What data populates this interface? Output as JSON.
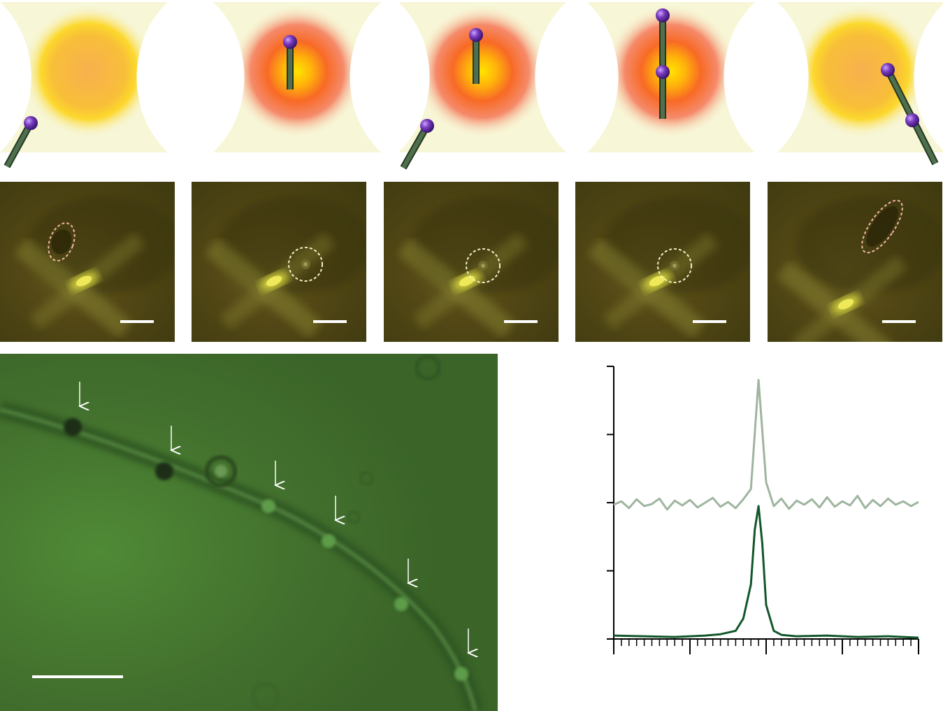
{
  "schematic_panels": [
    {
      "id": "s1",
      "trap_color": "yellow",
      "rods": [
        {
          "state": "outside-left-bottom"
        }
      ]
    },
    {
      "id": "s2",
      "trap_color": "red",
      "rods": [
        {
          "state": "trapped-vertical"
        }
      ]
    },
    {
      "id": "s3",
      "trap_color": "red",
      "rods": [
        {
          "state": "trapped-vertical"
        },
        {
          "state": "outside-left-bottom"
        }
      ]
    },
    {
      "id": "s4",
      "trap_color": "red",
      "rods": [
        {
          "state": "two-trapped-stacked"
        }
      ]
    },
    {
      "id": "s5",
      "trap_color": "yellow",
      "rods": [
        {
          "state": "escaping-right-two"
        }
      ]
    }
  ],
  "micrographs": [
    {
      "id": "m1",
      "marker": "pink-ellipse-tilted",
      "particle": "rod"
    },
    {
      "id": "m2",
      "marker": "white-circle",
      "particle": "spot"
    },
    {
      "id": "m3",
      "marker": "white-circle",
      "particle": "spot"
    },
    {
      "id": "m4",
      "marker": "white-circle",
      "particle": "spot"
    },
    {
      "id": "m5",
      "marker": "pink-ellipse-tilted",
      "particle": "rod"
    }
  ],
  "bottom_image": {
    "arrow_count": 6,
    "has_scale_bar": true
  },
  "colors": {
    "trap_yellow": "#f6b84a",
    "trap_red": "#f07030",
    "channel_bg": "#f7f6d6",
    "rod_green": "#4f6f4f",
    "sphere_purple": "#7a3cc0",
    "micro_bg": "#524715",
    "bottom_bg": "#3f6a2a",
    "trace_light": "#9fb59f",
    "trace_dark": "#12572a"
  },
  "chart_data": {
    "type": "line",
    "title": "",
    "xlabel": "",
    "ylabel": "",
    "x_ticks": 40,
    "y_ticks": 5,
    "xlim": [
      0,
      40
    ],
    "ylim": [
      0,
      4
    ],
    "series": [
      {
        "style": "light",
        "x": [
          0,
          1,
          2,
          3,
          4,
          5,
          6,
          7,
          8,
          9,
          10,
          11,
          12,
          13,
          14,
          15,
          16,
          17,
          18,
          19,
          20,
          21,
          22,
          23,
          24,
          25,
          26,
          27,
          28,
          29,
          30,
          31,
          32,
          33,
          34,
          35,
          36,
          37,
          38,
          39,
          40
        ],
        "values": [
          1.97,
          2.02,
          1.92,
          2.05,
          1.95,
          1.98,
          2.06,
          1.9,
          2.03,
          1.96,
          2.04,
          1.93,
          2.0,
          2.07,
          1.94,
          2.01,
          1.92,
          2.05,
          2.2,
          3.8,
          2.3,
          1.95,
          2.06,
          1.91,
          2.03,
          1.97,
          2.05,
          1.93,
          2.08,
          1.94,
          2.02,
          1.96,
          2.1,
          1.92,
          2.04,
          1.95,
          2.06,
          1.97,
          2.02,
          1.95,
          2.01
        ]
      },
      {
        "style": "dark",
        "x": [
          0,
          4,
          8,
          12,
          14,
          16,
          17,
          18,
          18.5,
          19,
          19.5,
          20,
          21,
          22,
          24,
          28,
          32,
          36,
          40
        ],
        "values": [
          0.05,
          0.04,
          0.03,
          0.05,
          0.07,
          0.12,
          0.3,
          0.8,
          1.6,
          1.95,
          1.4,
          0.5,
          0.12,
          0.06,
          0.04,
          0.05,
          0.03,
          0.04,
          0.02
        ]
      }
    ]
  }
}
